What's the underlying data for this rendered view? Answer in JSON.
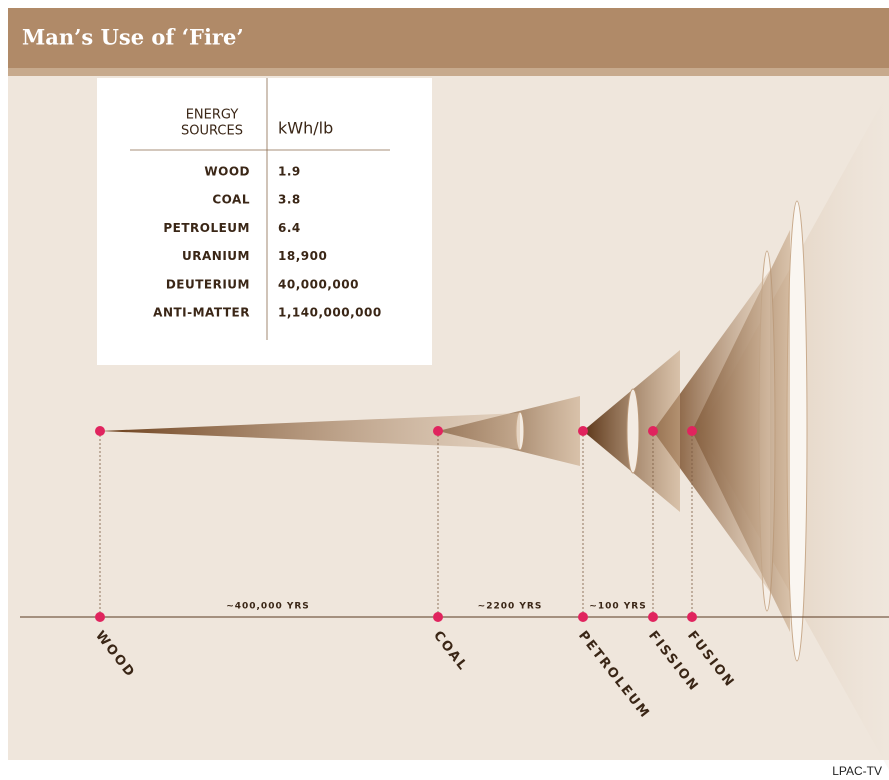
{
  "header": {
    "title": "Man’s Use of ‘Fire’"
  },
  "table": {
    "columns": [
      [
        "ENERGY",
        "SOURCES"
      ],
      "kWh/lb"
    ],
    "rows": [
      [
        "WOOD",
        "1.9"
      ],
      [
        "COAL",
        "3.8"
      ],
      [
        "PETROLEUM",
        "6.4"
      ],
      [
        "URANIUM",
        "18,900"
      ],
      [
        "DEUTERIUM",
        "40,000,000"
      ],
      [
        "ANTI-MATTER",
        "1,140,000,000"
      ]
    ]
  },
  "timeline": {
    "points": [
      "WOOD",
      "COAL",
      "PETROLEUM",
      "FISSION",
      "FUSION"
    ],
    "intervals": [
      "~400,000 YRS",
      "~2200 YRS",
      "~100 YRS"
    ]
  },
  "credit": "LPAC-TV"
}
